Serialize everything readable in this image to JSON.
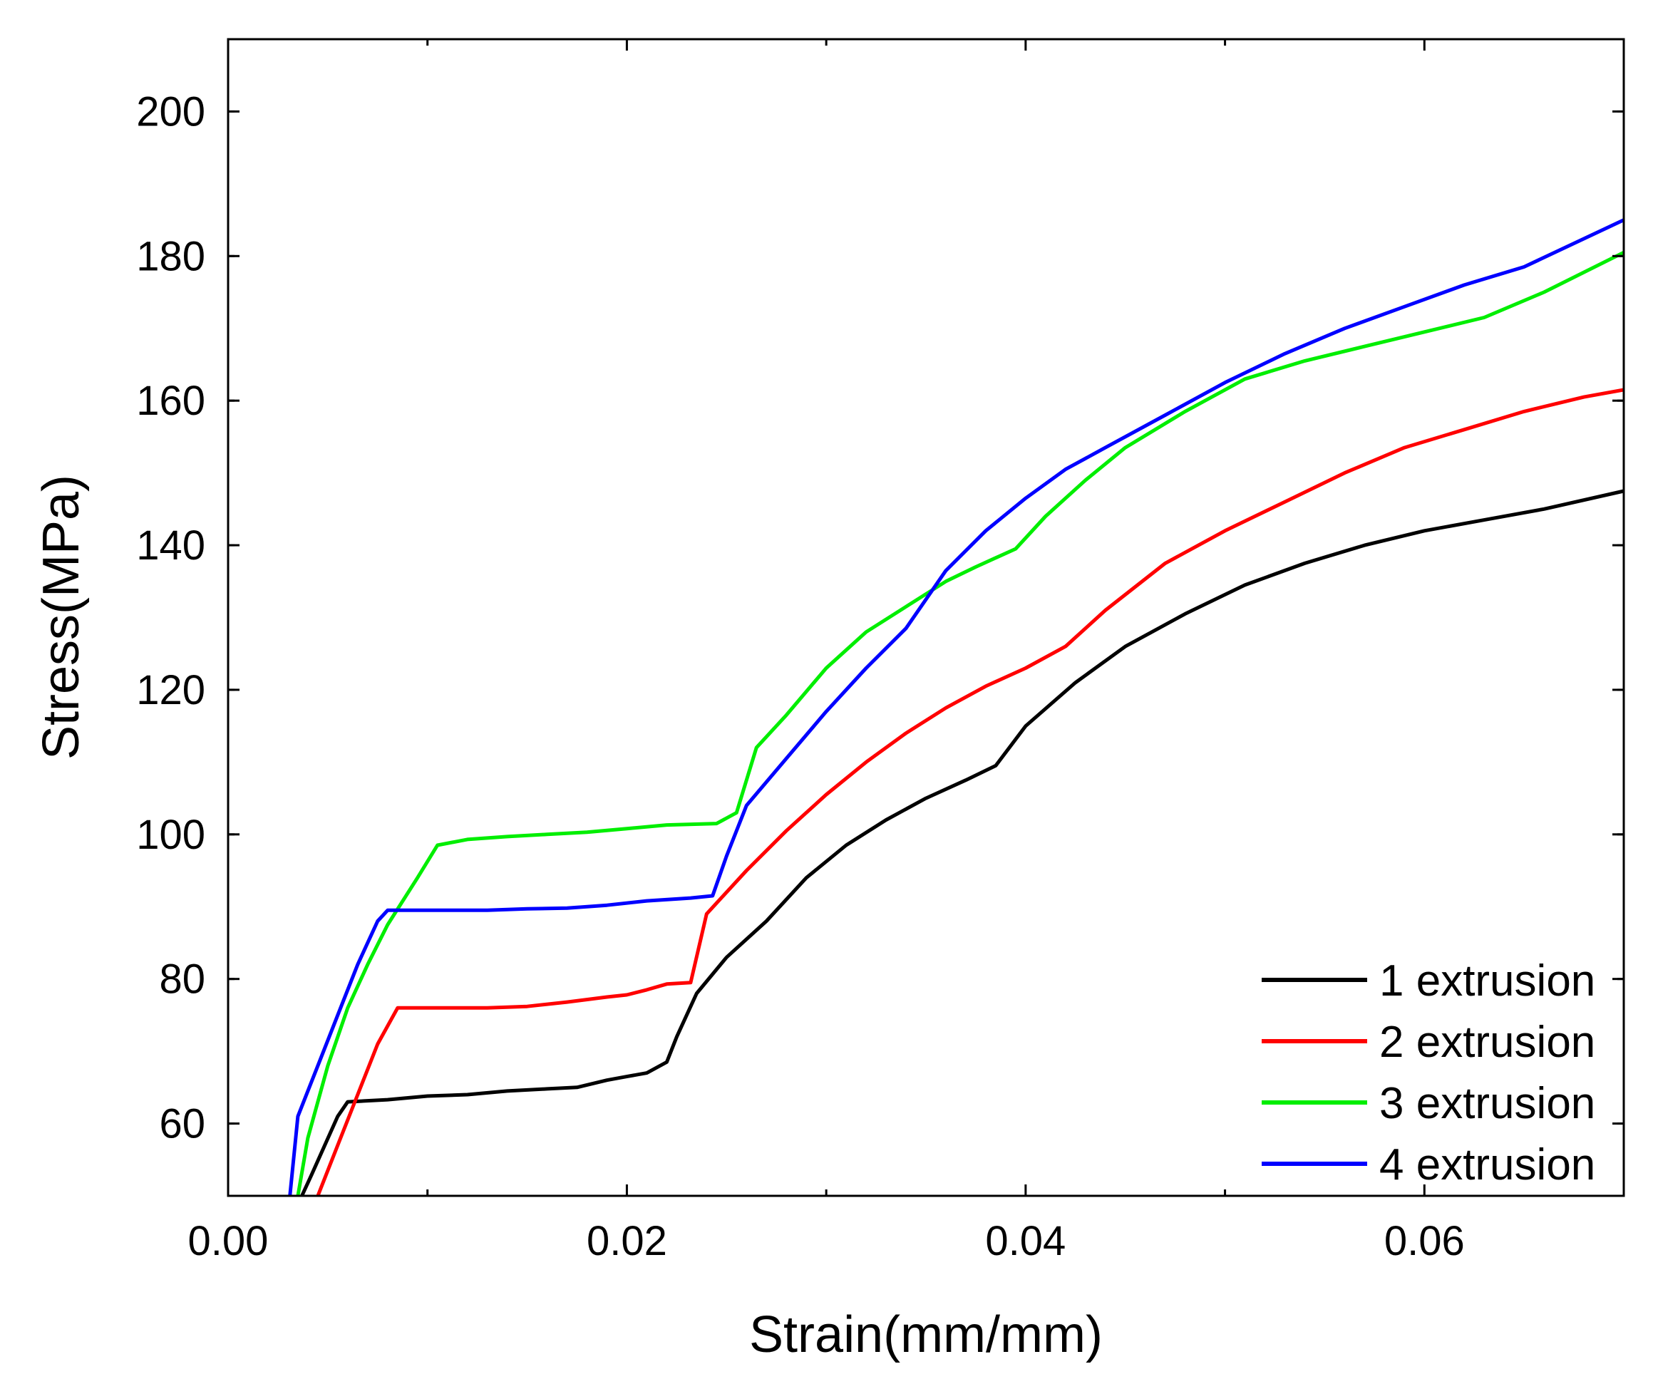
{
  "chart_data": {
    "type": "line",
    "title": "",
    "xlabel": "Strain(mm/mm)",
    "ylabel": "Stress(MPa)",
    "xlim": [
      0,
      0.07
    ],
    "ylim": [
      50,
      210
    ],
    "xticks": [
      0,
      0.02,
      0.04,
      0.06
    ],
    "xtick_labels": [
      "0.00",
      "0.02",
      "0.04",
      "0.06"
    ],
    "yticks": [
      60,
      80,
      100,
      120,
      140,
      160,
      180,
      200
    ],
    "ytick_labels": [
      "60",
      "80",
      "100",
      "120",
      "140",
      "160",
      "180",
      "200"
    ],
    "grid": false,
    "legend_position": "bottom-right",
    "series": [
      {
        "name": "1 extrusion",
        "color": "#000000",
        "x": [
          0.0037,
          0.0042,
          0.0055,
          0.006,
          0.008,
          0.01,
          0.012,
          0.014,
          0.016,
          0.0175,
          0.019,
          0.02,
          0.021,
          0.022,
          0.0225,
          0.0235,
          0.025,
          0.027,
          0.029,
          0.031,
          0.033,
          0.035,
          0.037,
          0.0385,
          0.04,
          0.0425,
          0.045,
          0.048,
          0.051,
          0.054,
          0.057,
          0.06,
          0.063,
          0.066,
          0.07
        ],
        "y": [
          50,
          53,
          61,
          63,
          63.3,
          63.8,
          64,
          64.5,
          64.8,
          65,
          66,
          66.5,
          67,
          68.5,
          72,
          78,
          83,
          88,
          94,
          98.5,
          102,
          105,
          107.5,
          109.5,
          115,
          121,
          126,
          130.5,
          134.5,
          137.5,
          140,
          142,
          143.5,
          145,
          147.5
        ]
      },
      {
        "name": "2 extrusion",
        "color": "#ff0000",
        "x": [
          0.0045,
          0.0055,
          0.0065,
          0.0075,
          0.0085,
          0.009,
          0.011,
          0.013,
          0.015,
          0.017,
          0.019,
          0.02,
          0.021,
          0.022,
          0.0232,
          0.024,
          0.026,
          0.028,
          0.03,
          0.032,
          0.034,
          0.036,
          0.038,
          0.04,
          0.042,
          0.044,
          0.047,
          0.05,
          0.053,
          0.056,
          0.059,
          0.062,
          0.065,
          0.068,
          0.07
        ],
        "y": [
          50,
          57,
          64,
          71,
          76,
          76,
          76,
          76,
          76.2,
          76.8,
          77.5,
          77.8,
          78.5,
          79.3,
          79.5,
          89,
          95,
          100.5,
          105.5,
          110,
          114,
          117.5,
          120.5,
          123,
          126,
          131,
          137.5,
          142,
          146,
          150,
          153.5,
          156,
          158.5,
          160.5,
          161.5
        ]
      },
      {
        "name": "3 extrusion",
        "color": "#00ee00",
        "x": [
          0.0035,
          0.004,
          0.005,
          0.006,
          0.007,
          0.008,
          0.0095,
          0.0105,
          0.012,
          0.014,
          0.016,
          0.018,
          0.02,
          0.022,
          0.0245,
          0.0255,
          0.0265,
          0.028,
          0.03,
          0.032,
          0.034,
          0.036,
          0.0375,
          0.0395,
          0.041,
          0.043,
          0.045,
          0.048,
          0.051,
          0.054,
          0.057,
          0.06,
          0.063,
          0.066,
          0.07
        ],
        "y": [
          50,
          58,
          68,
          76,
          82,
          87.5,
          94,
          98.5,
          99.3,
          99.7,
          100,
          100.3,
          100.8,
          101.3,
          101.5,
          103,
          112,
          116.5,
          123,
          128,
          131.5,
          135,
          137,
          139.5,
          144,
          149,
          153.5,
          158.5,
          163,
          165.5,
          167.5,
          169.5,
          171.5,
          175,
          180.5
        ]
      },
      {
        "name": "4 extrusion",
        "color": "#0000ff",
        "x": [
          0.0031,
          0.0035,
          0.0045,
          0.0055,
          0.0065,
          0.0075,
          0.008,
          0.0095,
          0.011,
          0.013,
          0.015,
          0.017,
          0.019,
          0.021,
          0.0232,
          0.0243,
          0.025,
          0.026,
          0.028,
          0.03,
          0.032,
          0.034,
          0.036,
          0.038,
          0.04,
          0.042,
          0.044,
          0.047,
          0.05,
          0.053,
          0.056,
          0.059,
          0.062,
          0.065,
          0.07
        ],
        "y": [
          50,
          61,
          68,
          75,
          82,
          88,
          89.5,
          89.5,
          89.5,
          89.5,
          89.7,
          89.8,
          90.2,
          90.8,
          91.2,
          91.5,
          97,
          104,
          110.5,
          117,
          123,
          128.5,
          136.5,
          142,
          146.5,
          150.5,
          153.5,
          158,
          162.5,
          166.5,
          170,
          173,
          176,
          178.5,
          185
        ]
      }
    ]
  }
}
